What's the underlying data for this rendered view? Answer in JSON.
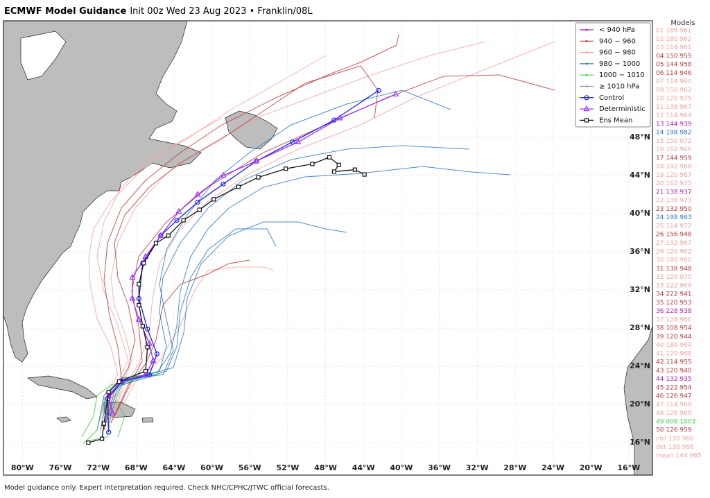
{
  "title": "ECMWF Model Guidance",
  "subtitle": "Init 00z Wed 23 Aug 2023 • Franklin/08L",
  "footer": "Model guidance only. Expert interpretation required. Check NHC/CPHC/JTWC official forecasts.",
  "models_header": "Models",
  "map": {
    "xlim": [
      -82,
      -13.5
    ],
    "ylim": [
      12.6,
      60.2
    ],
    "xticks": [
      {
        "value": -80,
        "label": "80°W"
      },
      {
        "value": -76,
        "label": "76°W"
      },
      {
        "value": -72,
        "label": "72°W"
      },
      {
        "value": -68,
        "label": "68°W"
      },
      {
        "value": -64,
        "label": "64°W"
      },
      {
        "value": -60,
        "label": "60°W"
      },
      {
        "value": -56,
        "label": "56°W"
      },
      {
        "value": -52,
        "label": "52°W"
      },
      {
        "value": -48,
        "label": "48°W"
      },
      {
        "value": -44,
        "label": "44°W"
      },
      {
        "value": -40,
        "label": "40°W"
      },
      {
        "value": -36,
        "label": "36°W"
      },
      {
        "value": -32,
        "label": "32°W"
      },
      {
        "value": -28,
        "label": "28°W"
      },
      {
        "value": -24,
        "label": "24°W"
      },
      {
        "value": -20,
        "label": "20°W"
      },
      {
        "value": -16,
        "label": "16°W"
      }
    ],
    "yticks": [
      {
        "value": 16,
        "label": "16°N"
      },
      {
        "value": 20,
        "label": "20°N"
      },
      {
        "value": 24,
        "label": "24°N"
      },
      {
        "value": 28,
        "label": "28°N"
      },
      {
        "value": 32,
        "label": "32°N"
      },
      {
        "value": 36,
        "label": "36°N"
      },
      {
        "value": 40,
        "label": "40°N"
      },
      {
        "value": 44,
        "label": "44°N"
      },
      {
        "value": 48,
        "label": "48°N"
      }
    ],
    "grid": true
  },
  "legend": [
    {
      "label": "< 940 hPa",
      "color": "#b01fb0"
    },
    {
      "label": "940 − 960",
      "color": "#c0393b"
    },
    {
      "label": "960 − 980",
      "color": "#f4a3a3"
    },
    {
      "label": "980 − 1000",
      "color": "#2f78c4"
    },
    {
      "label": "1000 − 1010",
      "color": "#3fcf3f"
    },
    {
      "label": "≥ 1010 hPa",
      "color": "#999999"
    }
  ],
  "tracks": [
    {
      "name": "Control",
      "color": "#1a1aff",
      "marker": "circle",
      "lon": [
        -70.9,
        -71.0,
        -69.5,
        -66.6,
        -65.8,
        -66.8,
        -67.7,
        -67.3,
        -65.4,
        -63.7,
        -61.5,
        -58.8,
        -55.3,
        -51.5,
        -47.1,
        -42.4
      ],
      "lat": [
        17.1,
        20.6,
        22.4,
        23.1,
        25.3,
        27.9,
        31.1,
        34.8,
        37.7,
        39.3,
        41.2,
        43.1,
        45.5,
        47.5,
        49.8,
        52.9
      ]
    },
    {
      "name": "Deterministic",
      "color": "#9b30ff",
      "marker": "triangle",
      "lon": [
        -70.5,
        -70.9,
        -69.5,
        -67.0,
        -66.2,
        -66.6,
        -67.7,
        -68.4,
        -68.4,
        -67.0,
        -65.4,
        -63.5,
        -61.5,
        -58.8,
        -55.3,
        -50.9,
        -46.5,
        -40.6
      ],
      "lat": [
        19.1,
        20.9,
        22.5,
        23.1,
        24.6,
        26.4,
        28.9,
        31.1,
        33.3,
        35.5,
        37.7,
        40.2,
        42.0,
        44.0,
        45.5,
        47.5,
        50.0,
        52.5
      ]
    },
    {
      "name": "Ens Mean",
      "color": "#111111",
      "marker": "square",
      "lon": [
        -73.05,
        -71.6,
        -71.4,
        -70.9,
        -69.8,
        -67.0,
        -66.8,
        -67.3,
        -67.7,
        -67.7,
        -67.2,
        -65.9,
        -64.6,
        -63.0,
        -61.3,
        -59.8,
        -57.2,
        -55.1,
        -52.2,
        -49.4,
        -47.6,
        -46.6,
        -47.1,
        -44.9,
        -43.9
      ],
      "lat": [
        16.0,
        16.4,
        18.0,
        21.3,
        22.4,
        23.5,
        26.0,
        28.2,
        30.4,
        32.6,
        34.8,
        36.9,
        37.7,
        39.3,
        40.4,
        41.5,
        42.8,
        43.8,
        44.7,
        45.2,
        45.9,
        45.1,
        44.4,
        44.6,
        44.1
      ]
    }
  ],
  "models": [
    {
      "label": "01 186 961",
      "color": "#f4a3a3"
    },
    {
      "label": "02 180 962",
      "color": "#f4a3a3"
    },
    {
      "label": "03 114 961",
      "color": "#f4a3a3"
    },
    {
      "label": "04 150 955",
      "color": "#c0393b"
    },
    {
      "label": "05 144 958",
      "color": "#c0393b"
    },
    {
      "label": "06 114 946",
      "color": "#c0393b"
    },
    {
      "label": "07 114 960",
      "color": "#f4a3a3"
    },
    {
      "label": "09 150 962",
      "color": "#f4a3a3"
    },
    {
      "label": "10 120 975",
      "color": "#f4a3a3"
    },
    {
      "label": "11 138 967",
      "color": "#f4a3a3"
    },
    {
      "label": "12 114 964",
      "color": "#f4a3a3"
    },
    {
      "label": "13 144 939",
      "color": "#b01fb0"
    },
    {
      "label": "14 198 982",
      "color": "#2f78c4"
    },
    {
      "label": "15 150 972",
      "color": "#f4a3a3"
    },
    {
      "label": "16 162 966",
      "color": "#f4a3a3"
    },
    {
      "label": "17 144 959",
      "color": "#c0393b"
    },
    {
      "label": "18 192 968",
      "color": "#f4a3a3"
    },
    {
      "label": "19 120 967",
      "color": "#f4a3a3"
    },
    {
      "label": "20 162 975",
      "color": "#f4a3a3"
    },
    {
      "label": "21 138 937",
      "color": "#b01fb0"
    },
    {
      "label": "22 138 973",
      "color": "#f4a3a3"
    },
    {
      "label": "23 132 950",
      "color": "#c0393b"
    },
    {
      "label": "24 198 983",
      "color": "#2f78c4"
    },
    {
      "label": "25 114 977",
      "color": "#f4a3a3"
    },
    {
      "label": "26 156 948",
      "color": "#c0393b"
    },
    {
      "label": "27 132 967",
      "color": "#f4a3a3"
    },
    {
      "label": "29 120 962",
      "color": "#f4a3a3"
    },
    {
      "label": "30 180 960",
      "color": "#f4a3a3"
    },
    {
      "label": "31 138 948",
      "color": "#c0393b"
    },
    {
      "label": "32 120 970",
      "color": "#f4a3a3"
    },
    {
      "label": "33 222 969",
      "color": "#f4a3a3"
    },
    {
      "label": "34 222 941",
      "color": "#c0393b"
    },
    {
      "label": "35 120 953",
      "color": "#c0393b"
    },
    {
      "label": "36 228 938",
      "color": "#b01fb0"
    },
    {
      "label": "37 138 960",
      "color": "#f4a3a3"
    },
    {
      "label": "38 108 954",
      "color": "#c0393b"
    },
    {
      "label": "39 120 944",
      "color": "#c0393b"
    },
    {
      "label": "40 186 964",
      "color": "#f4a3a3"
    },
    {
      "label": "41 120 968",
      "color": "#f4a3a3"
    },
    {
      "label": "42 114 955",
      "color": "#c0393b"
    },
    {
      "label": "43 120 940",
      "color": "#c0393b"
    },
    {
      "label": "44 132 935",
      "color": "#b01fb0"
    },
    {
      "label": "45 222 954",
      "color": "#c0393b"
    },
    {
      "label": "46 126 947",
      "color": "#c0393b"
    },
    {
      "label": "47 114 968",
      "color": "#f4a3a3"
    },
    {
      "label": "48 126 968",
      "color": "#f4a3a3"
    },
    {
      "label": "49 006 1003",
      "color": "#3fcf3f"
    },
    {
      "label": "50 126 959",
      "color": "#c0393b"
    },
    {
      "label": "ctrl 138 966",
      "color": "#f4a3a3"
    },
    {
      "label": "det 138 966",
      "color": "#f4a3a3"
    },
    {
      "label": "mean 144 965",
      "color": "#f4a3a3"
    }
  ]
}
